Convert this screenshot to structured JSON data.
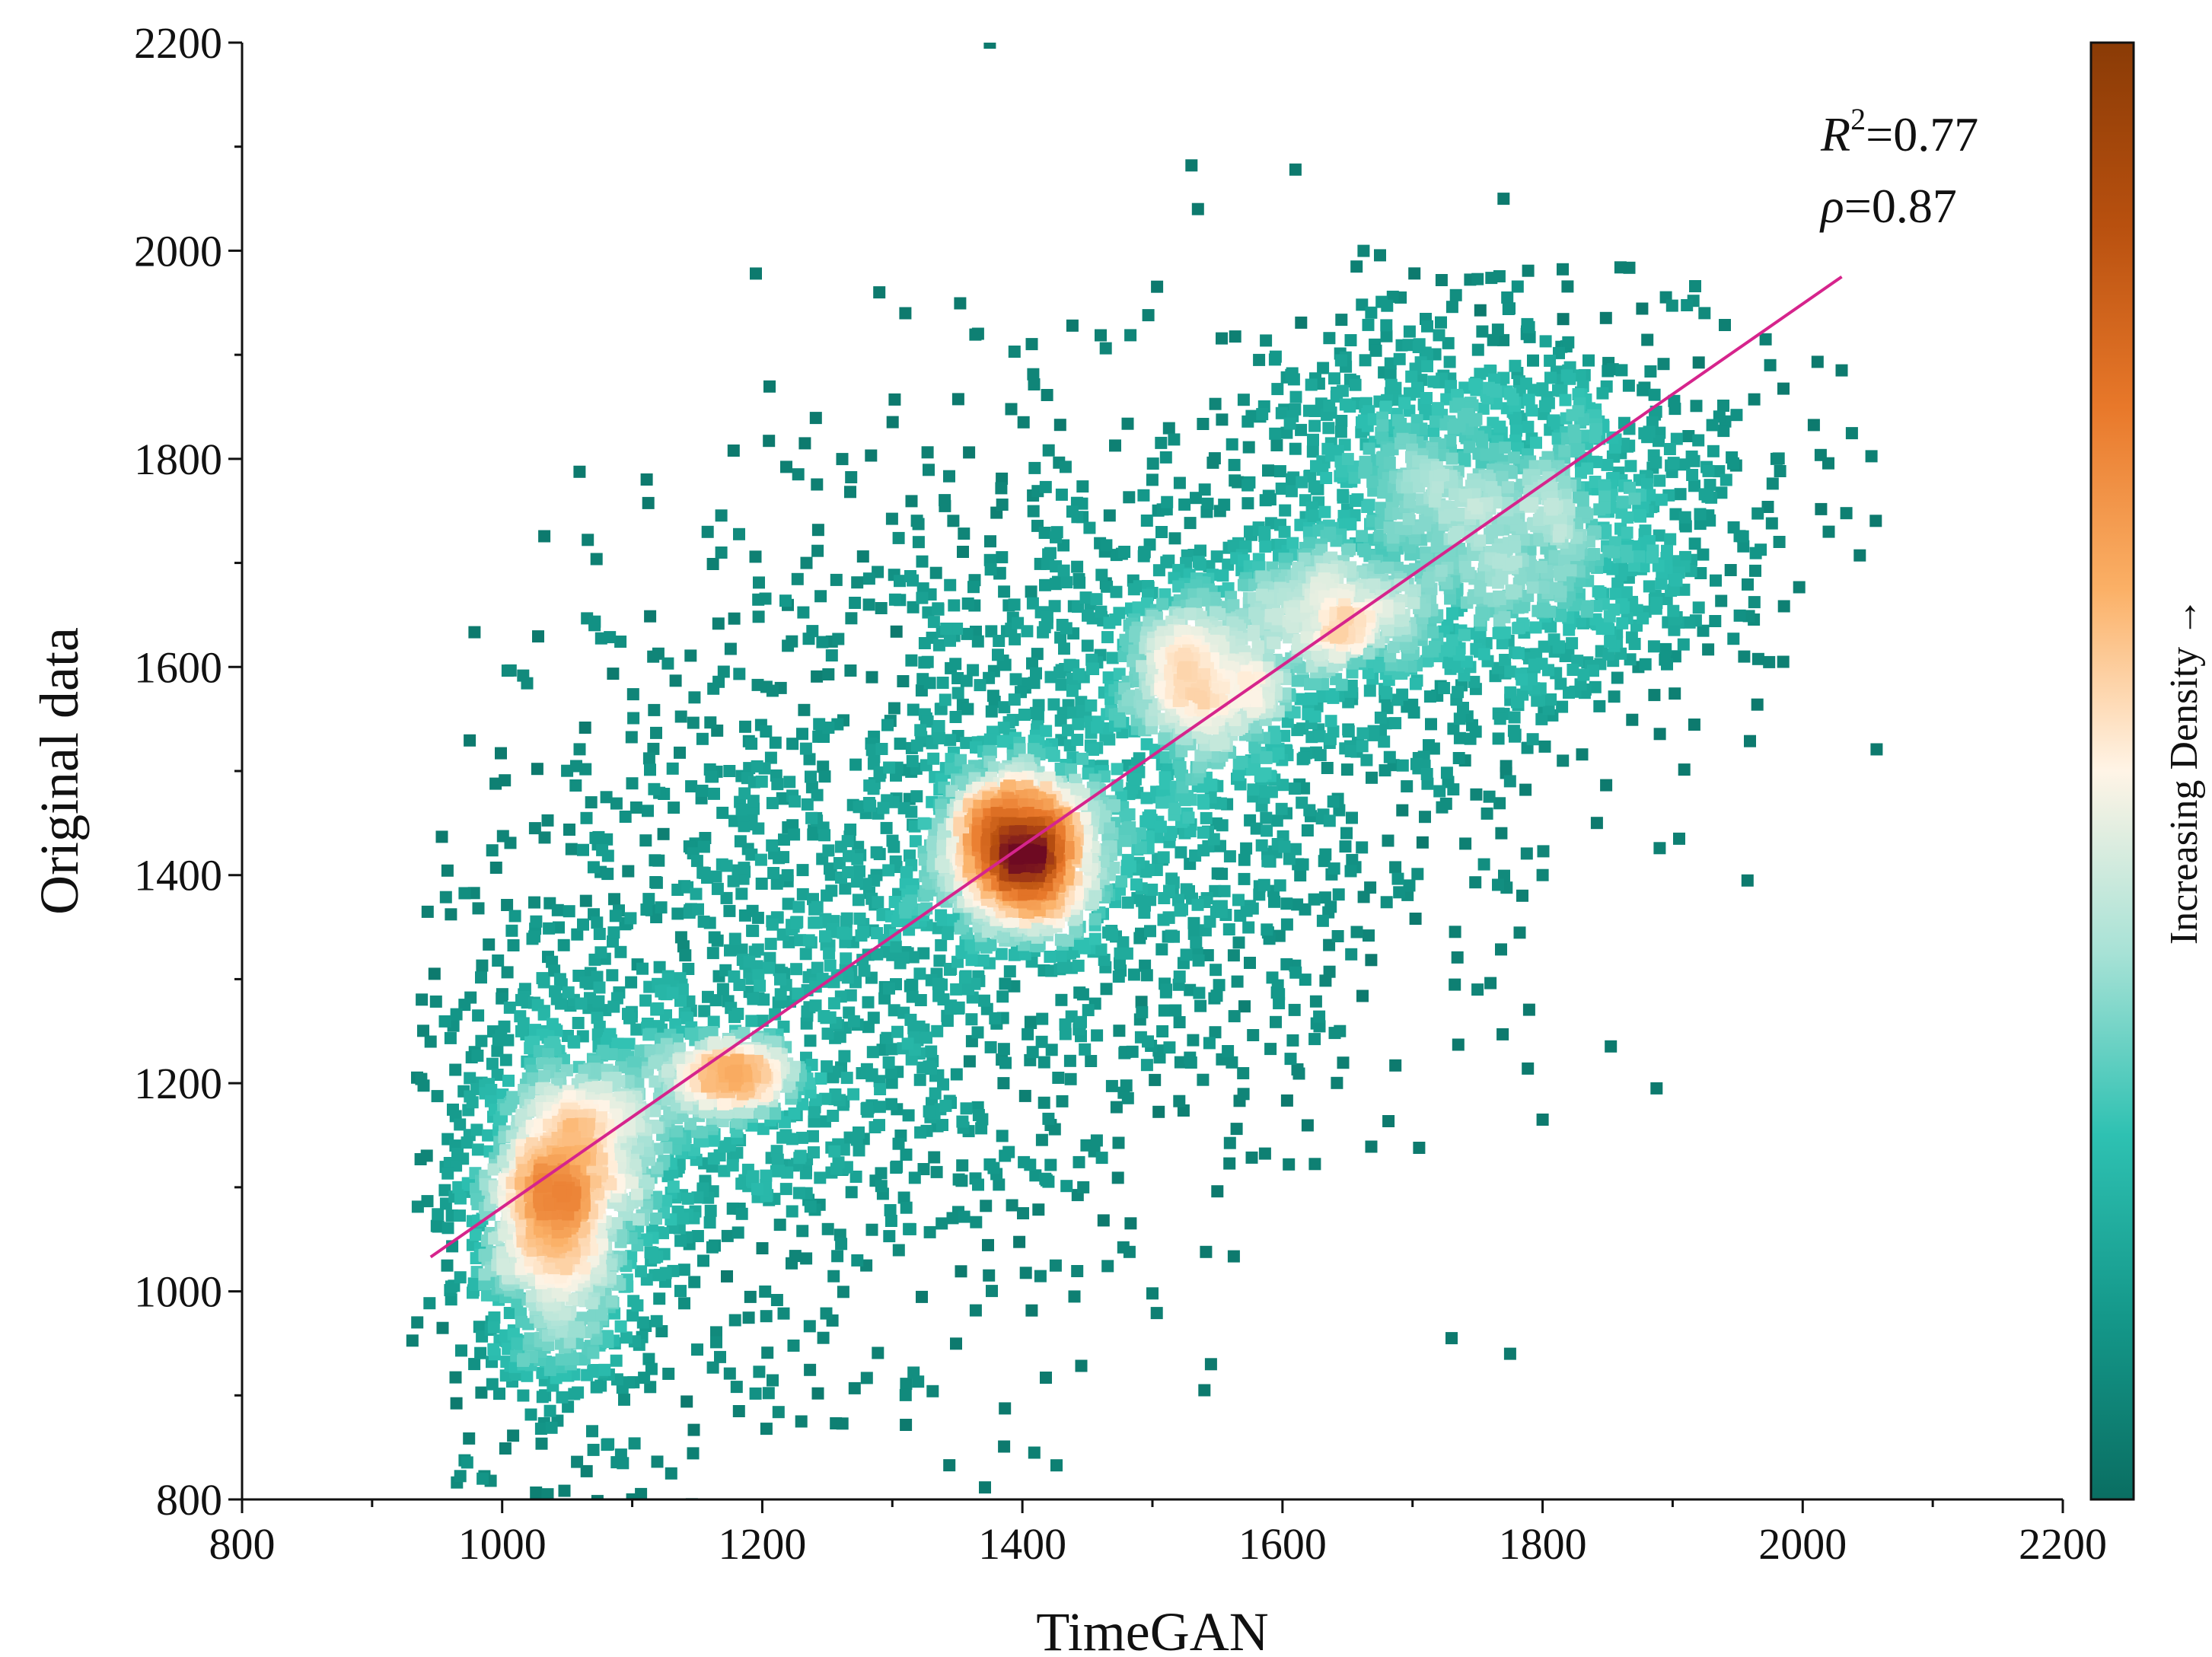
{
  "chart_data": {
    "type": "scatter",
    "subtype": "density-colored scatter with linear fit",
    "xlabel": "TimeGAN",
    "ylabel": "Original data",
    "xlim": [
      800,
      2200
    ],
    "ylim": [
      800,
      2200
    ],
    "x_ticks": [
      800,
      1000,
      1200,
      1400,
      1600,
      1800,
      2000,
      2200
    ],
    "y_ticks": [
      800,
      1000,
      1200,
      1400,
      1600,
      1800,
      2000,
      2200
    ],
    "colorbar_label": "Increasing Density →",
    "colormap": [
      "#0a6e62",
      "#14988a",
      "#2ec1b2",
      "#a7e2d6",
      "#fff4e6",
      "#fbb066",
      "#e8782a",
      "#b8500f",
      "#6e0a22"
    ],
    "colorbar_colormap": [
      "#0a6e62",
      "#14988a",
      "#2ec1b2",
      "#a7e2d6",
      "#fff4e6",
      "#fbb066",
      "#e8782a",
      "#b8500f",
      "#8a3b06"
    ],
    "fit_line": {
      "x": [
        945,
        2030
      ],
      "y": [
        1033,
        1975
      ],
      "color": "#d6248c"
    },
    "stats": [
      {
        "symbol": "R",
        "superscript": "2",
        "value": "=0.77"
      },
      {
        "symbol": "ρ",
        "superscript": "",
        "value": "=0.87"
      }
    ],
    "clusters": [
      {
        "x": 1400,
        "y": 1425,
        "sx": 32,
        "sy": 40,
        "n": 1300
      },
      {
        "x": 1038,
        "y": 1085,
        "sx": 28,
        "sy": 75,
        "n": 1000
      },
      {
        "x": 1090,
        "y": 1150,
        "sx": 30,
        "sy": 50,
        "n": 300
      },
      {
        "x": 1175,
        "y": 1205,
        "sx": 28,
        "sy": 22,
        "n": 320
      },
      {
        "x": 1540,
        "y": 1590,
        "sx": 38,
        "sy": 50,
        "n": 650
      },
      {
        "x": 1640,
        "y": 1650,
        "sx": 32,
        "sy": 32,
        "n": 350
      },
      {
        "x": 1760,
        "y": 1740,
        "sx": 95,
        "sy": 95,
        "n": 1800
      },
      {
        "x": 1480,
        "y": 1500,
        "sx": 140,
        "sy": 170,
        "n": 1300
      },
      {
        "x": 1230,
        "y": 1280,
        "sx": 130,
        "sy": 170,
        "n": 1200
      },
      {
        "x": 1050,
        "y": 1070,
        "sx": 60,
        "sy": 130,
        "n": 500
      }
    ],
    "outliers": [
      [
        1375,
        2200
      ],
      [
        1530,
        2082
      ],
      [
        1610,
        2078
      ],
      [
        1535,
        2040
      ],
      [
        1770,
        2050
      ],
      [
        1290,
        1960
      ],
      [
        1310,
        1940
      ],
      [
        1975,
        1890
      ],
      [
        2030,
        1885
      ],
      [
        2020,
        1730
      ],
      [
        1955,
        1610
      ],
      [
        1985,
        1605
      ],
      [
        1730,
        955
      ],
      [
        1775,
        940
      ],
      [
        1545,
        930
      ],
      [
        1540,
        905
      ],
      [
        1440,
        995
      ],
      [
        1500,
        998
      ],
      [
        1800,
        1165
      ],
      [
        985,
        820
      ],
      [
        1035,
        805
      ],
      [
        1100,
        800
      ],
      [
        1130,
        825
      ],
      [
        945,
        1240
      ],
      [
        1230,
        875
      ],
      [
        1905,
        1435
      ],
      [
        1800,
        1400
      ],
      [
        1750,
        1290
      ]
    ]
  }
}
